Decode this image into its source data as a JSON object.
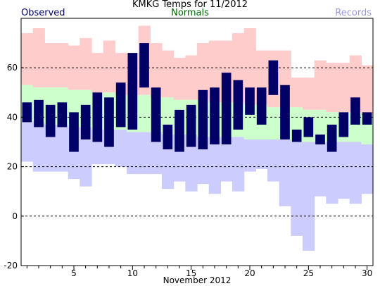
{
  "header": {
    "title": "KMKG Temps for 11/2012",
    "legend_observed": "Observed",
    "legend_normals": "Normals",
    "legend_records": "Records"
  },
  "colors": {
    "observed": "#000066",
    "normals_band": "#ccffcc",
    "record_high_band": "#ffcccc",
    "record_low_band": "#ccccff",
    "legend_normals_text": "#006600",
    "legend_records_text": "#9999dd",
    "grid": "#000000"
  },
  "chart_data": {
    "type": "bar",
    "title": "KMKG Temps for 11/2012",
    "xlabel": "November 2012",
    "ylabel": "",
    "xlim": [
      1,
      30
    ],
    "ylim": [
      -20,
      80
    ],
    "x_ticks": [
      5,
      10,
      15,
      20,
      25,
      30
    ],
    "y_ticks": [
      -20,
      0,
      20,
      40,
      60
    ],
    "grid_y": [
      0,
      20,
      40,
      60
    ],
    "days": [
      1,
      2,
      3,
      4,
      5,
      6,
      7,
      8,
      9,
      10,
      11,
      12,
      13,
      14,
      15,
      16,
      17,
      18,
      19,
      20,
      21,
      22,
      23,
      24,
      25,
      26,
      27,
      28,
      29,
      30
    ],
    "series": [
      {
        "name": "Observed",
        "high": [
          46,
          47,
          45,
          46,
          42,
          45,
          50,
          48,
          54,
          66,
          70,
          52,
          37,
          43,
          45,
          51,
          52,
          58,
          55,
          52,
          52,
          63,
          53,
          35,
          40,
          33,
          37,
          42,
          48,
          42
        ],
        "low": [
          38,
          36,
          32,
          36,
          26,
          31,
          30,
          28,
          36,
          35,
          52,
          30,
          27,
          26,
          28,
          27,
          29,
          29,
          35,
          41,
          37,
          49,
          31,
          30,
          32,
          29,
          26,
          32,
          37,
          37
        ]
      },
      {
        "name": "Records",
        "high": [
          74,
          76,
          70,
          70,
          69,
          72,
          66,
          71,
          66,
          66,
          77,
          70,
          67,
          64,
          65,
          70,
          71,
          71,
          74,
          76,
          67,
          67,
          67,
          56,
          56,
          63,
          62,
          62,
          65,
          61
        ],
        "low": [
          22,
          18,
          18,
          18,
          15,
          12,
          21,
          21,
          20,
          17,
          17,
          17,
          11,
          14,
          10,
          13,
          9,
          14,
          10,
          18,
          19,
          14,
          4,
          -8,
          -14,
          8,
          5,
          7,
          5,
          9
        ]
      },
      {
        "name": "Normals",
        "high": [
          53,
          52,
          52,
          52,
          51,
          51,
          50,
          50,
          49,
          49,
          49,
          48,
          48,
          47,
          47,
          47,
          46,
          46,
          46,
          45,
          45,
          44,
          44,
          44,
          43,
          43,
          42,
          42,
          42,
          41
        ],
        "low": [
          38,
          38,
          37,
          37,
          36,
          36,
          35,
          35,
          35,
          34,
          34,
          34,
          33,
          33,
          33,
          32,
          32,
          32,
          32,
          31,
          31,
          31,
          31,
          30,
          30,
          30,
          30,
          30,
          30,
          29
        ]
      }
    ]
  }
}
